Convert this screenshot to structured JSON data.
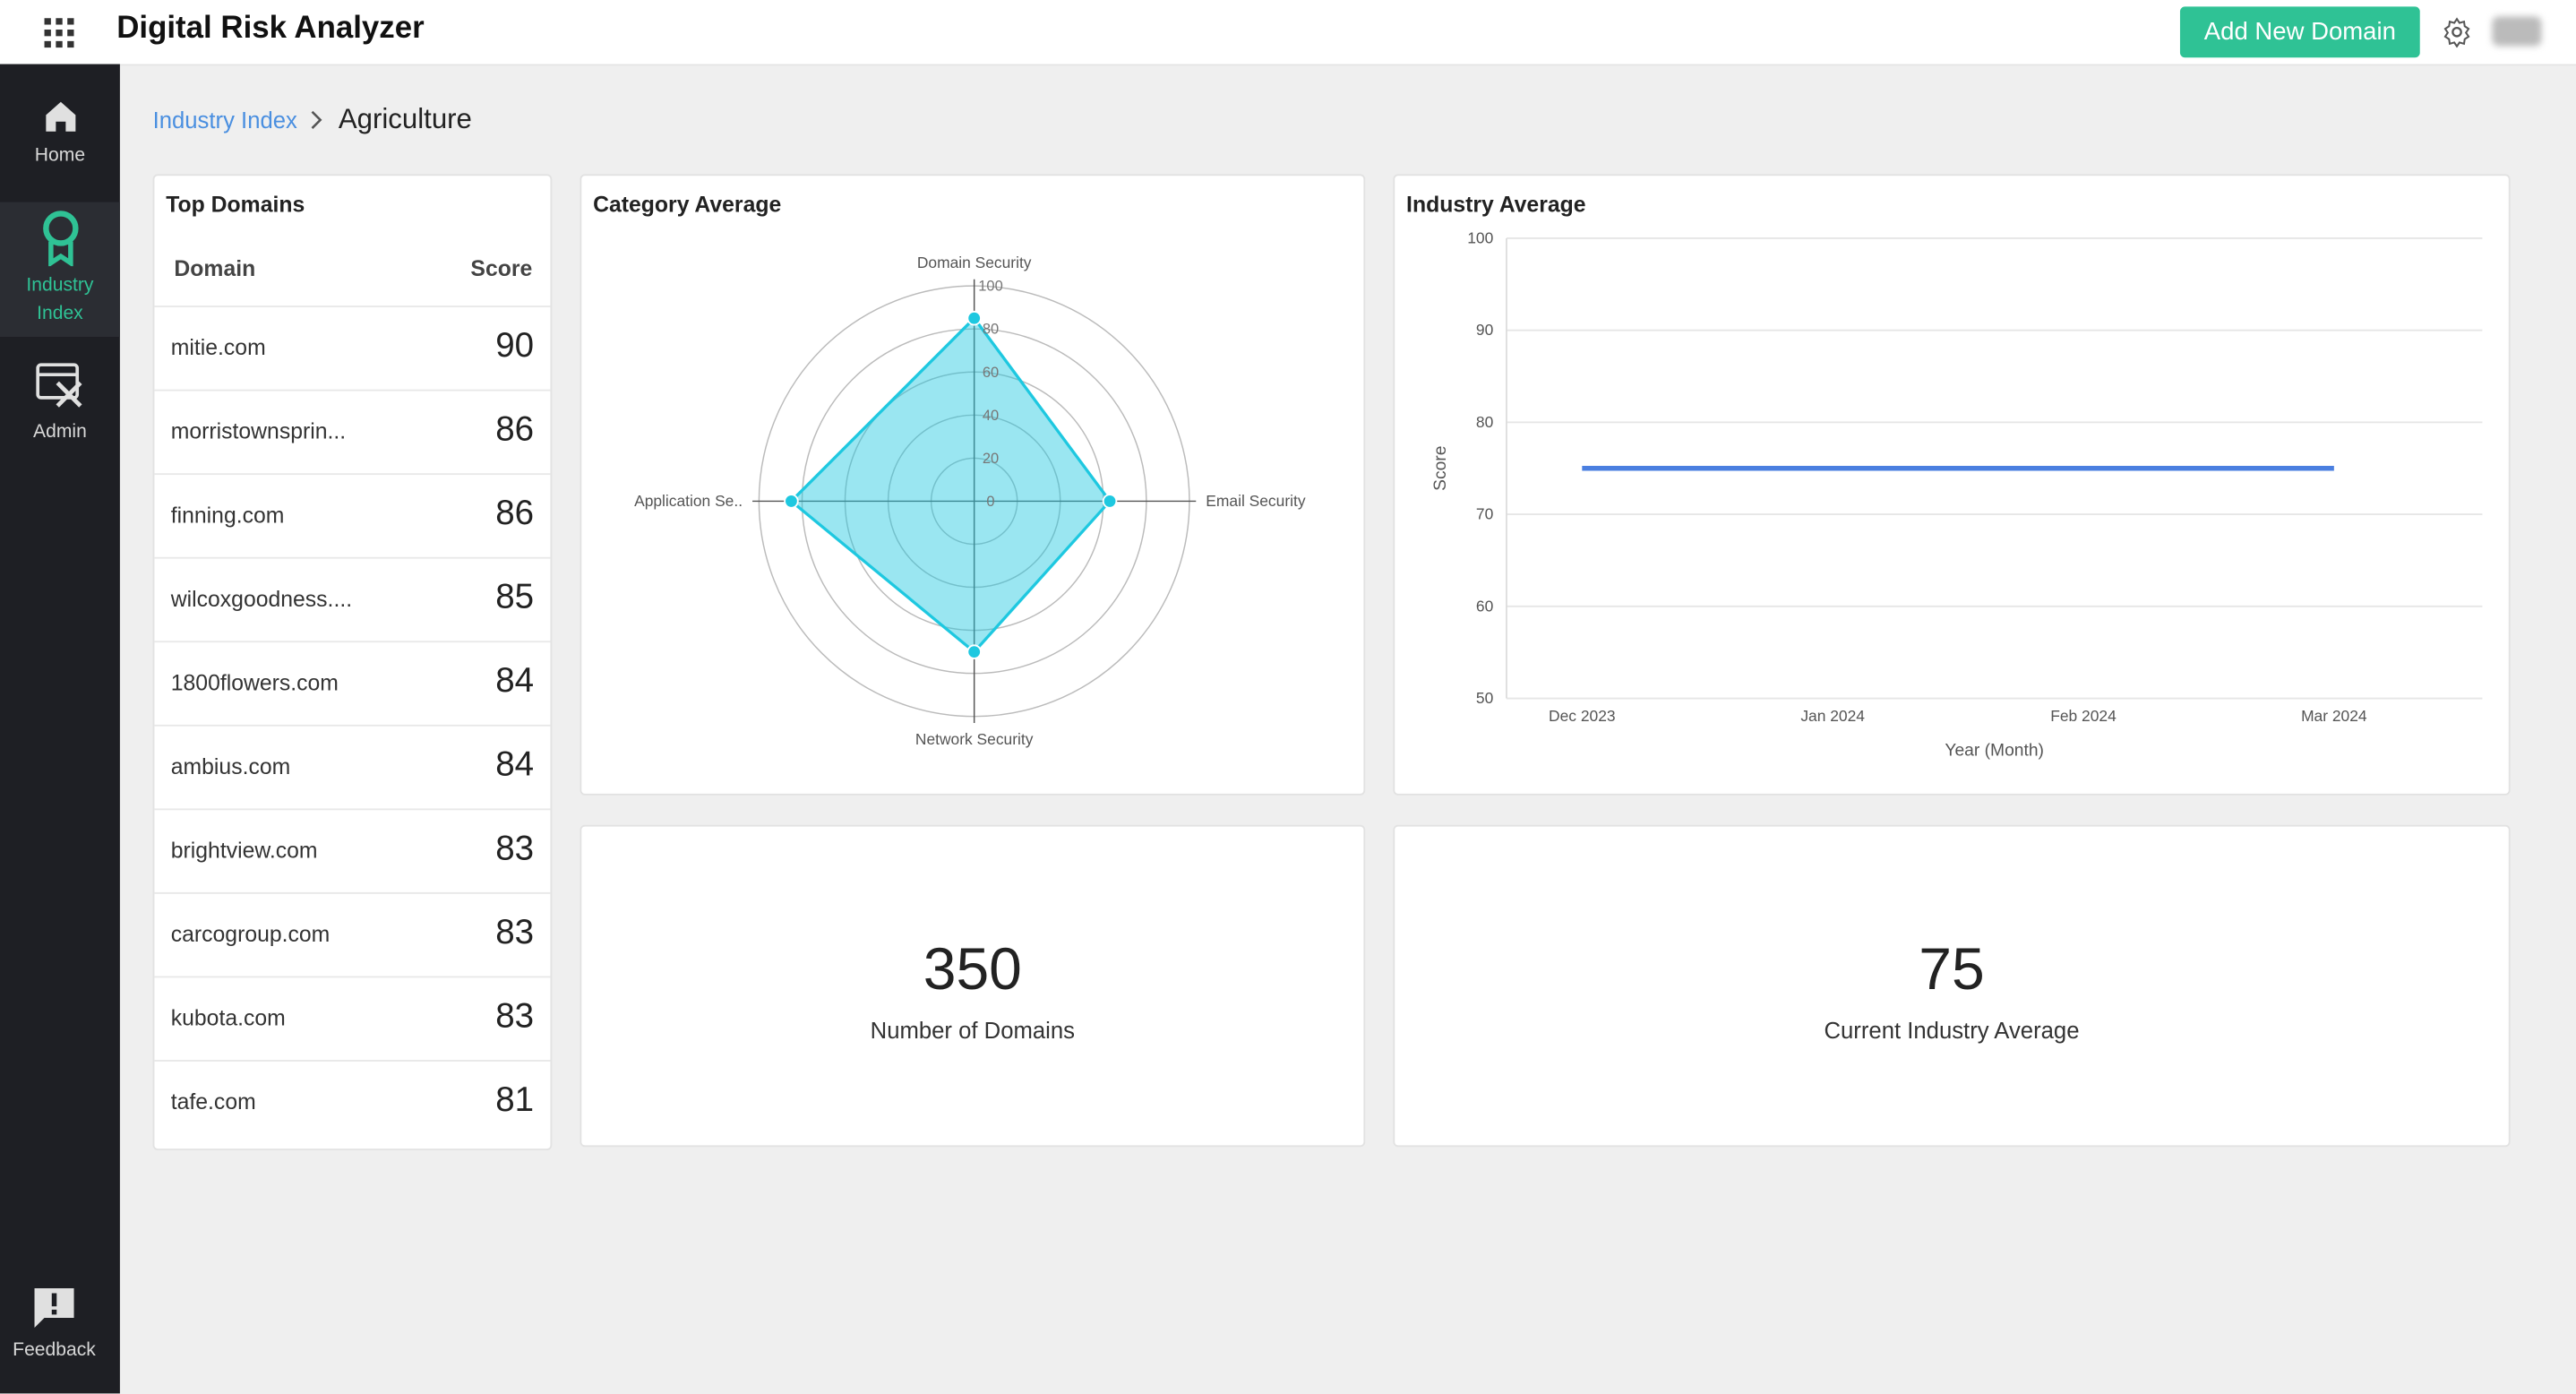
{
  "header": {
    "title": "Digital Risk Analyzer",
    "button": "Add New Domain"
  },
  "sidebar": {
    "items": [
      "Home",
      "Industry Index",
      "Admin"
    ],
    "feedback": "Feedback"
  },
  "breadcrumb": {
    "parent": "Industry Index",
    "current": "Agriculture"
  },
  "top_domains": {
    "title": "Top Domains",
    "columns": [
      "Domain",
      "Score"
    ],
    "rows": [
      [
        "mitie.com",
        90
      ],
      [
        "morristownsprin...",
        86
      ],
      [
        "finning.com",
        86
      ],
      [
        "wilcoxgoodness....",
        85
      ],
      [
        "1800flowers.com",
        84
      ],
      [
        "ambius.com",
        84
      ],
      [
        "brightview.com",
        83
      ],
      [
        "carcogroup.com",
        83
      ],
      [
        "kubota.com",
        83
      ],
      [
        "tafe.com",
        81
      ]
    ]
  },
  "category_average": {
    "type": "radar",
    "title": "Category Average",
    "categories": [
      "Domain Security",
      "Email Security",
      "Network Security",
      "Application Se.."
    ],
    "values": [
      85,
      63,
      70,
      85
    ],
    "color": "#1ec8e0",
    "rlim": [
      0,
      100
    ],
    "rticks": [
      0,
      20,
      40,
      60,
      80,
      100
    ]
  },
  "industry_average": {
    "type": "line",
    "title": "Industry Average",
    "categories": [
      "Dec 2023",
      "Jan 2024",
      "Feb 2024",
      "Mar 2024"
    ],
    "values": [
      75,
      75,
      75,
      75
    ],
    "color": "#4a7fe0",
    "ylim": [
      50,
      100
    ],
    "yticks": [
      50,
      60,
      70,
      80,
      90,
      100
    ],
    "y_label": "Score",
    "x_label": "Year (Month)",
    "grid": true
  },
  "stats": [
    {
      "value": 350,
      "label": "Number of Domains"
    },
    {
      "value": 75,
      "label": "Current Industry Average"
    }
  ]
}
